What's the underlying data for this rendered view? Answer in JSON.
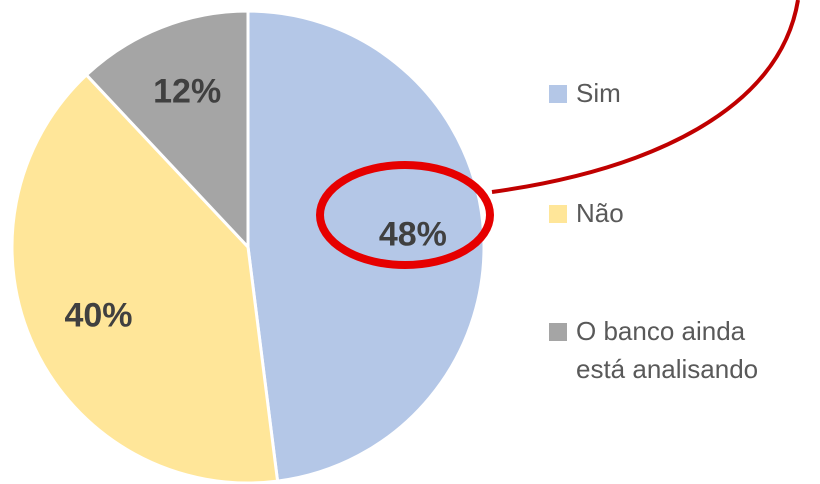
{
  "chart_data": {
    "type": "pie",
    "categories": [
      "Sim",
      "Não",
      "O banco ainda está analisando"
    ],
    "values": [
      48,
      40,
      12
    ],
    "value_labels": [
      "48%",
      "40%",
      "12%"
    ],
    "colors": [
      "#b4c7e7",
      "#ffe699",
      "#a5a5a5"
    ],
    "legend": "right"
  }
}
